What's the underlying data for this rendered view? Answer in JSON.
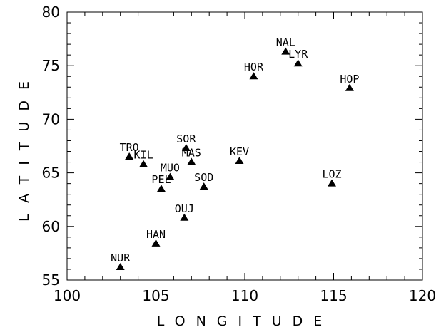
{
  "chart_data": {
    "type": "scatter",
    "title": "",
    "xlabel": "LONGITUDE",
    "ylabel": "LATITUDE",
    "xlim": [
      100,
      120
    ],
    "ylim": [
      55,
      80
    ],
    "x_ticks": [
      "100",
      "105",
      "110",
      "115",
      "120"
    ],
    "y_ticks": [
      "55",
      "60",
      "65",
      "70",
      "75",
      "80"
    ],
    "grid": false,
    "legend": "none",
    "marker": "filled-triangle",
    "color": "#000000",
    "points": [
      {
        "label": "NUR",
        "x": 103.0,
        "y": 56.2
      },
      {
        "label": "HAN",
        "x": 105.0,
        "y": 58.4
      },
      {
        "label": "OUJ",
        "x": 106.6,
        "y": 60.8
      },
      {
        "label": "PEL",
        "x": 105.3,
        "y": 63.5
      },
      {
        "label": "MUO",
        "x": 105.8,
        "y": 64.6
      },
      {
        "label": "SOD",
        "x": 107.7,
        "y": 63.7
      },
      {
        "label": "KIL",
        "x": 104.3,
        "y": 65.8
      },
      {
        "label": "TRO",
        "x": 103.5,
        "y": 66.5
      },
      {
        "label": "SOR",
        "x": 106.7,
        "y": 67.3
      },
      {
        "label": "MAS",
        "x": 107.0,
        "y": 66.0
      },
      {
        "label": "KEV",
        "x": 109.7,
        "y": 66.1
      },
      {
        "label": "LOZ",
        "x": 114.9,
        "y": 64.0
      },
      {
        "label": "HOR",
        "x": 110.5,
        "y": 74.0
      },
      {
        "label": "NAL",
        "x": 112.3,
        "y": 76.3
      },
      {
        "label": "LYR",
        "x": 113.0,
        "y": 75.2
      },
      {
        "label": "HOP",
        "x": 115.9,
        "y": 72.9
      }
    ]
  }
}
